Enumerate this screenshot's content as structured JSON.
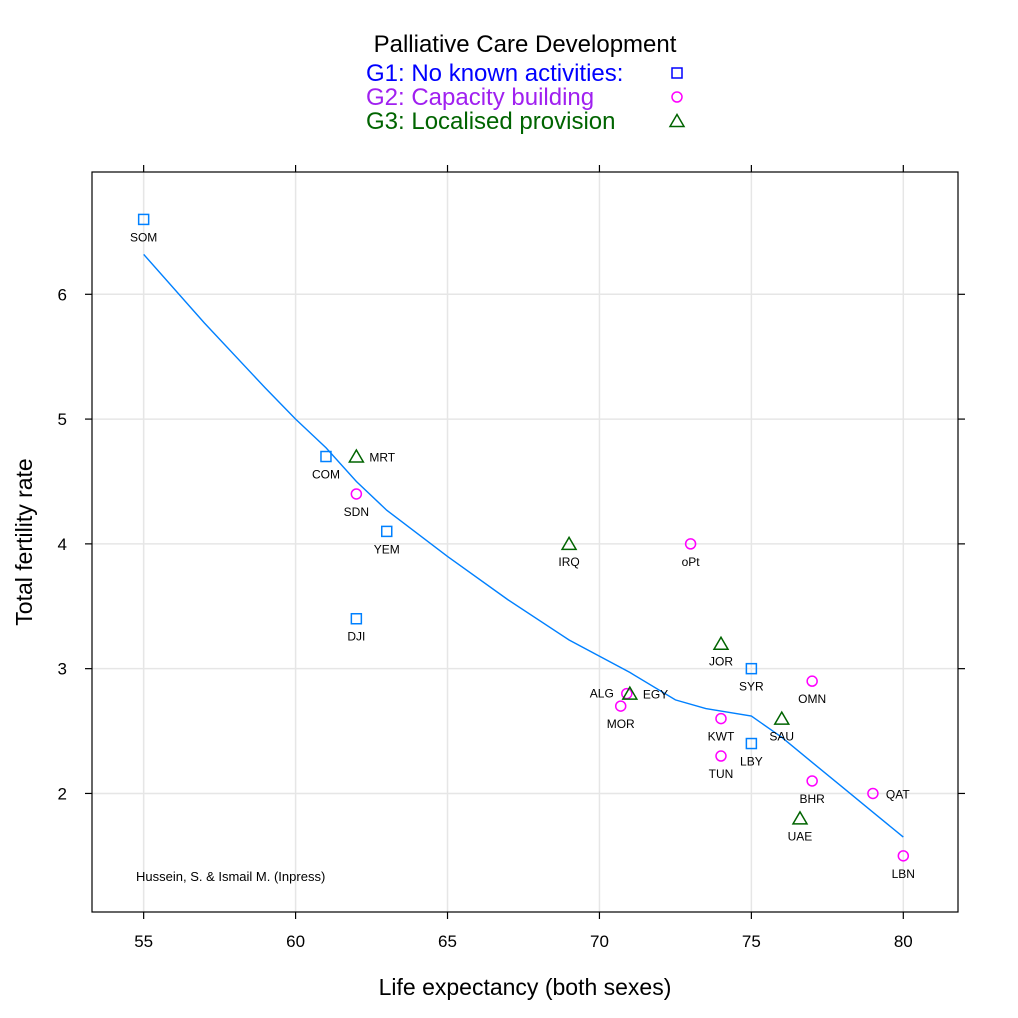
{
  "chart_data": {
    "type": "scatter",
    "legend": {
      "title": "Palliative Care Development",
      "placement": "top"
    },
    "xlabel": "Life expectancy (both sexes)",
    "ylabel": "Total fertility rate",
    "xlim": [
      53.3,
      81.8
    ],
    "ylim": [
      1.05,
      6.98
    ],
    "x_ticks": [
      55,
      60,
      65,
      70,
      75,
      80
    ],
    "y_ticks": [
      2,
      3,
      4,
      5,
      6
    ],
    "grid": true,
    "annotation": "Hussein, S. & Ismail M. (Inpress)",
    "series": [
      {
        "name": "G1: No known activities:",
        "marker": "square",
        "color": "#0080ff",
        "label_color": "#0000ff",
        "points": [
          {
            "label": "SOM",
            "x": 55,
            "y": 6.6
          },
          {
            "label": "COM",
            "x": 61,
            "y": 4.7
          },
          {
            "label": "YEM",
            "x": 63,
            "y": 4.1
          },
          {
            "label": "DJI",
            "x": 62,
            "y": 3.4
          },
          {
            "label": "SYR",
            "x": 75,
            "y": 3.0
          },
          {
            "label": "LBY",
            "x": 75,
            "y": 2.4
          }
        ]
      },
      {
        "name": "G2: Capacity building",
        "marker": "circle",
        "color": "#ff00ff",
        "label_color": "#a020f0",
        "points": [
          {
            "label": "SDN",
            "x": 62,
            "y": 4.4
          },
          {
            "label": "oPt",
            "x": 73,
            "y": 4.0
          },
          {
            "label": "OMN",
            "x": 77,
            "y": 2.9
          },
          {
            "label": "MOR",
            "x": 70.7,
            "y": 2.7
          },
          {
            "label": "ALG",
            "x": 70.9,
            "y": 2.8
          },
          {
            "label": "KWT",
            "x": 74,
            "y": 2.6
          },
          {
            "label": "TUN",
            "x": 74,
            "y": 2.3
          },
          {
            "label": "BHR",
            "x": 77,
            "y": 2.1
          },
          {
            "label": "QAT",
            "x": 79,
            "y": 2.0
          },
          {
            "label": "LBN",
            "x": 80,
            "y": 1.5
          }
        ]
      },
      {
        "name": "G3: Localised provision",
        "marker": "triangle",
        "color": "#006400",
        "label_color": "#006400",
        "points": [
          {
            "label": "MRT",
            "x": 62,
            "y": 4.7
          },
          {
            "label": "IRQ",
            "x": 69,
            "y": 4.0
          },
          {
            "label": "JOR",
            "x": 74,
            "y": 3.2
          },
          {
            "label": "EGY",
            "x": 71,
            "y": 2.8
          },
          {
            "label": "SAU",
            "x": 76,
            "y": 2.6
          },
          {
            "label": "UAE",
            "x": 76.6,
            "y": 1.8
          }
        ]
      }
    ],
    "smooth_line": {
      "color": "#0080ff",
      "x": [
        55,
        57,
        59,
        60,
        61,
        62,
        63,
        65,
        67,
        69,
        71,
        72.5,
        73.5,
        75,
        76,
        77,
        78,
        79,
        80
      ],
      "y": [
        6.32,
        5.77,
        5.25,
        5.0,
        4.77,
        4.5,
        4.27,
        3.9,
        3.55,
        3.23,
        2.97,
        2.75,
        2.68,
        2.62,
        2.45,
        2.25,
        2.05,
        1.85,
        1.65
      ]
    }
  }
}
